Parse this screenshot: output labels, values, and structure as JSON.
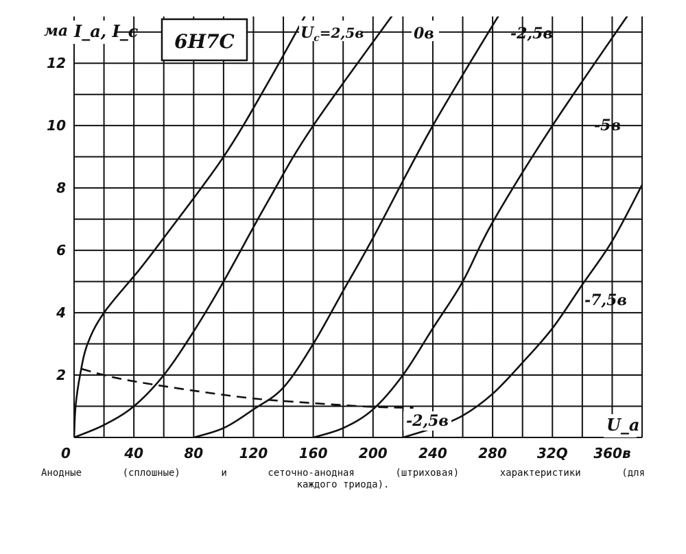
{
  "chart_data": {
    "type": "line",
    "title": "6Н7С",
    "xlabel": "U_a",
    "ylabel": "I_a, I_c",
    "y_unit_label": "ма",
    "xlim": [
      0,
      380
    ],
    "ylim": [
      0,
      13.5
    ],
    "grid": true,
    "x_ticks": [
      {
        "v": 0,
        "label": "0"
      },
      {
        "v": 40,
        "label": "40"
      },
      {
        "v": 80,
        "label": "80"
      },
      {
        "v": 120,
        "label": "120"
      },
      {
        "v": 160,
        "label": "160"
      },
      {
        "v": 200,
        "label": "200"
      },
      {
        "v": 240,
        "label": "240"
      },
      {
        "v": 280,
        "label": "280"
      },
      {
        "v": 320,
        "label": "32Q"
      },
      {
        "v": 360,
        "label": "360в"
      }
    ],
    "y_ticks": [
      {
        "v": 2,
        "label": "2"
      },
      {
        "v": 4,
        "label": "4"
      },
      {
        "v": 6,
        "label": "6"
      },
      {
        "v": 8,
        "label": "8"
      },
      {
        "v": 10,
        "label": "10"
      },
      {
        "v": 12,
        "label": "12"
      }
    ],
    "series": [
      {
        "name": "U_c = 2,5в",
        "style": "solid",
        "label": "=2,5в",
        "points": [
          [
            0,
            0
          ],
          [
            1,
            1
          ],
          [
            4,
            2
          ],
          [
            9,
            3
          ],
          [
            20,
            4
          ],
          [
            44,
            5.4
          ],
          [
            60,
            6.4
          ],
          [
            100,
            9
          ],
          [
            130,
            11.4
          ],
          [
            160,
            14
          ]
        ]
      },
      {
        "name": "0в",
        "style": "solid",
        "label": "0в",
        "points": [
          [
            0,
            0
          ],
          [
            20,
            0.4
          ],
          [
            40,
            1
          ],
          [
            60,
            2
          ],
          [
            80,
            3.4
          ],
          [
            100,
            5
          ],
          [
            130,
            7.6
          ],
          [
            160,
            10
          ],
          [
            220,
            14
          ]
        ]
      },
      {
        "name": "-2,5в",
        "style": "solid",
        "label": "-2,5в",
        "points": [
          [
            80,
            0
          ],
          [
            100,
            0.3
          ],
          [
            120,
            0.9
          ],
          [
            140,
            1.6
          ],
          [
            160,
            3
          ],
          [
            180,
            4.7
          ],
          [
            200,
            6.4
          ],
          [
            240,
            10
          ],
          [
            290,
            14
          ]
        ]
      },
      {
        "name": "-5в",
        "style": "solid",
        "label": "-5в",
        "points": [
          [
            160,
            0
          ],
          [
            180,
            0.3
          ],
          [
            200,
            0.9
          ],
          [
            220,
            2
          ],
          [
            240,
            3.5
          ],
          [
            260,
            5
          ],
          [
            280,
            6.9
          ],
          [
            320,
            10
          ],
          [
            380,
            14.2
          ]
        ]
      },
      {
        "name": "-7,5в",
        "style": "solid",
        "label": "-7,5в",
        "points": [
          [
            220,
            0
          ],
          [
            240,
            0.3
          ],
          [
            260,
            0.7
          ],
          [
            280,
            1.4
          ],
          [
            300,
            2.4
          ],
          [
            320,
            3.5
          ],
          [
            340,
            4.9
          ],
          [
            360,
            6.3
          ],
          [
            380,
            8.1
          ]
        ]
      },
      {
        "name": "-2,5в",
        "style": "dashed",
        "label": "-2,5в",
        "points": [
          [
            5,
            2.2
          ],
          [
            20,
            2
          ],
          [
            40,
            1.8
          ],
          [
            80,
            1.5
          ],
          [
            120,
            1.25
          ],
          [
            160,
            1.1
          ],
          [
            200,
            0.98
          ],
          [
            227,
            0.95
          ]
        ]
      }
    ]
  },
  "caption": {
    "line1": "Анодные (сплошные) и сеточно-анодная (штриховая) характеристики (для",
    "line2": "каждого триода)."
  }
}
